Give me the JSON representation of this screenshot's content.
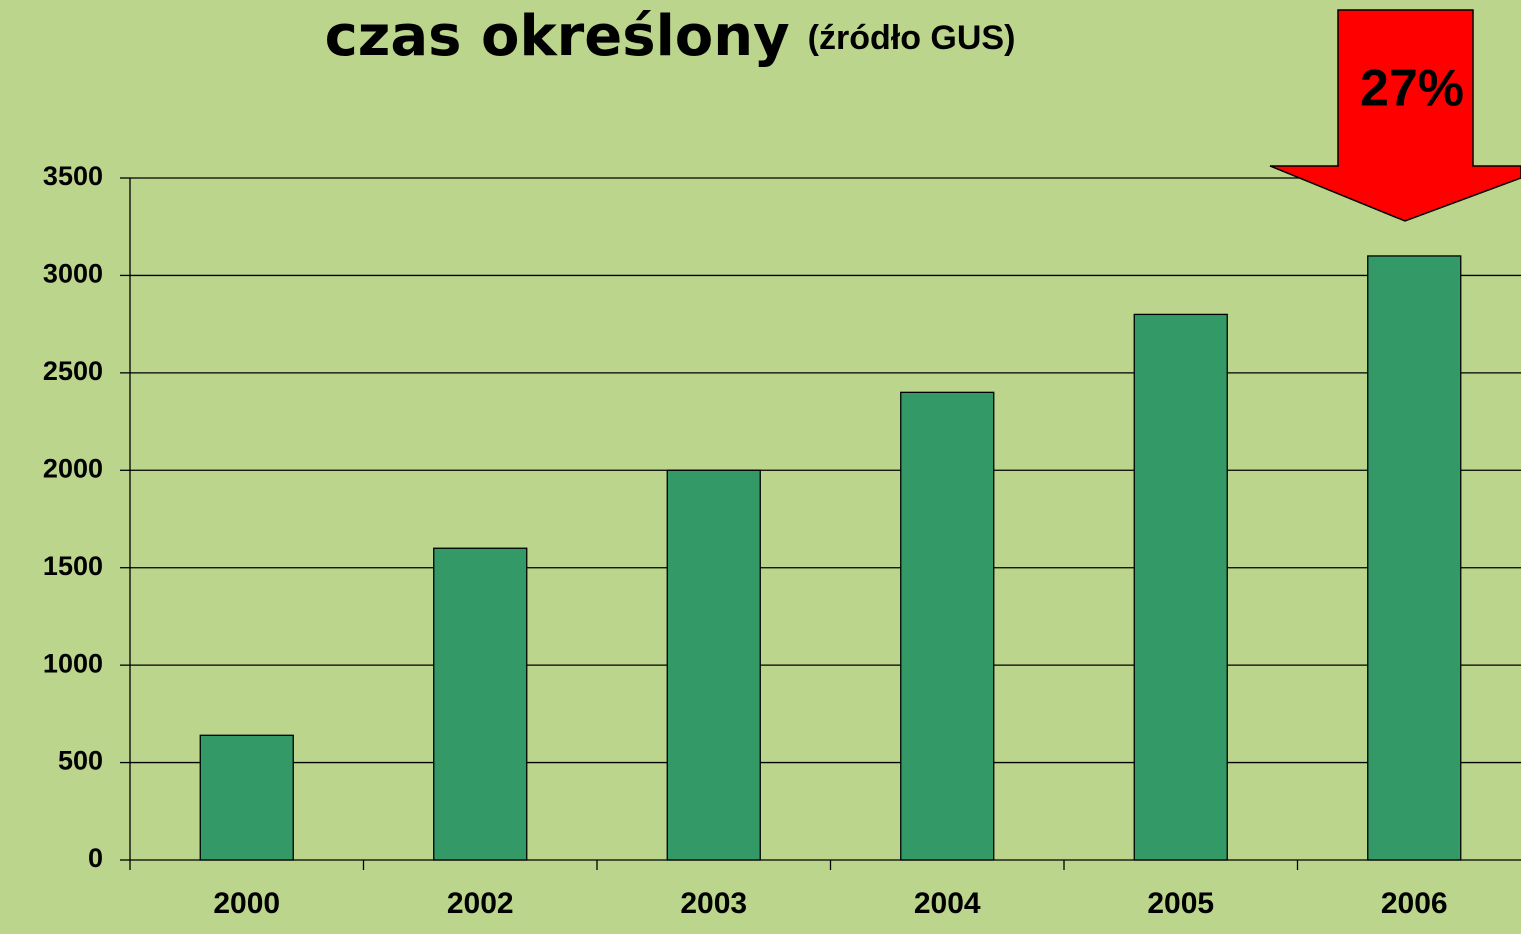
{
  "chart_data": {
    "type": "bar",
    "title": "czas określony",
    "subtitle": "(źródło GUS)",
    "annotation": "27%",
    "categories": [
      "2000",
      "2002",
      "2003",
      "2004",
      "2005",
      "2006"
    ],
    "values": [
      640,
      1600,
      2000,
      2400,
      2800,
      3100
    ],
    "color": "#339966",
    "ylim": [
      0,
      3500
    ],
    "yticks": [
      0,
      500,
      1000,
      1500,
      2000,
      2500,
      3000,
      3500
    ],
    "grid": true
  }
}
